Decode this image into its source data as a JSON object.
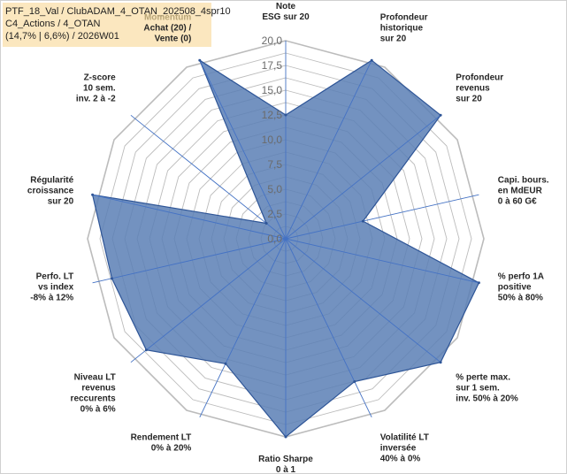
{
  "info": {
    "line1": "PTF_18_Val / ClubADAM_4_OTAN_202508_4spr10",
    "line2": "C4_Actions / 4_OTAN",
    "line3": "(14,7% | 6,6%) / 2026W01"
  },
  "chart_data": {
    "type": "radar",
    "rlim": [
      0,
      20
    ],
    "tick_labels": [
      "0,0",
      "2,5",
      "5,0",
      "7,5",
      "10,0",
      "12,5",
      "15,0",
      "17,5",
      "20,0"
    ],
    "grid": true,
    "grid_style": "dodecagon",
    "colors": {
      "fill": "#5b7fb5",
      "stroke": "#2e5597",
      "grid": "#bcbcbc",
      "spoke": "#4472c4"
    },
    "axes": [
      {
        "label": [
          "Note",
          "ESG sur 20"
        ],
        "value": 12.5
      },
      {
        "label": [
          "Profondeur",
          "historique",
          "sur 20"
        ],
        "value": 20
      },
      {
        "label": [
          "Profondeur",
          "revenus",
          "sur 20"
        ],
        "value": 20
      },
      {
        "label": [
          "Capi. bours.",
          "en MdEUR",
          "0 à 60 G€"
        ],
        "value": 8
      },
      {
        "label": [
          "% perfo 1A",
          "positive",
          "50% à 80%"
        ],
        "value": 20
      },
      {
        "label": [
          "% perte max.",
          "sur 1 sem.",
          "inv. 50% à 20%"
        ],
        "value": 20
      },
      {
        "label": [
          "Volatilité LT",
          "inversée",
          "40% à 0%"
        ],
        "value": 16
      },
      {
        "label": [
          "Ratio Sharpe",
          "0 à 1"
        ],
        "value": 20
      },
      {
        "label": [
          "Rendement LT",
          "0% à 20%"
        ],
        "value": 14
      },
      {
        "label": [
          "Niveau LT",
          "revenus",
          "reccurents",
          "0% à 6%"
        ],
        "value": 18
      },
      {
        "label": [
          "Perfo. LT",
          "vs index",
          "-8% à 12%"
        ],
        "value": 18
      },
      {
        "label": [
          "Régularité",
          "croissance",
          "sur 20"
        ],
        "value": 20
      },
      {
        "label": [
          "Z-score",
          "10 sem.",
          "inv. 2 à -2"
        ],
        "value": 2.5
      },
      {
        "label": [
          "Momentum",
          "Achat (20) /",
          "Vente (0)"
        ],
        "value": 20,
        "first_line_muted": true
      }
    ]
  }
}
